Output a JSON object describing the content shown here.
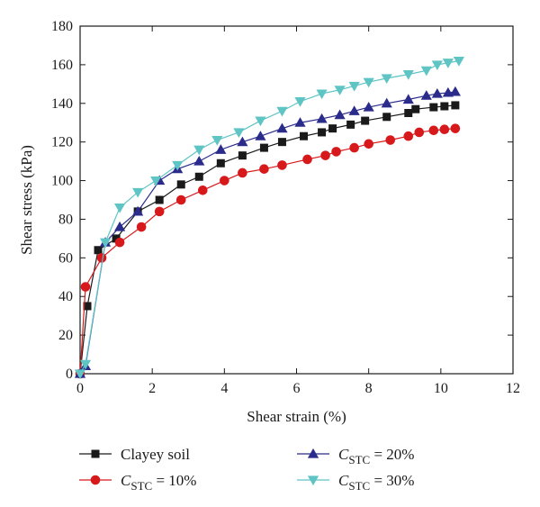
{
  "chart_data": {
    "type": "line",
    "xlabel": "Shear strain (%)",
    "ylabel": "Shear stress (kPa)",
    "xlim": [
      0,
      12
    ],
    "ylim": [
      0,
      180
    ],
    "xticks": [
      0,
      2,
      4,
      6,
      8,
      10,
      12
    ],
    "yticks": [
      0,
      20,
      40,
      60,
      80,
      100,
      120,
      140,
      160,
      180
    ],
    "grid": false,
    "legend_position": "bottom",
    "series": [
      {
        "name": "Clayey soil",
        "marker": "square",
        "color": "#1a1a1a",
        "points": [
          [
            0.0,
            0
          ],
          [
            0.2,
            35
          ],
          [
            0.5,
            64
          ],
          [
            1.0,
            70
          ],
          [
            1.6,
            84
          ],
          [
            2.2,
            90
          ],
          [
            2.8,
            98
          ],
          [
            3.3,
            102
          ],
          [
            3.9,
            109
          ],
          [
            4.5,
            113
          ],
          [
            5.1,
            117
          ],
          [
            5.6,
            120
          ],
          [
            6.2,
            123
          ],
          [
            6.7,
            125
          ],
          [
            7.0,
            127
          ],
          [
            7.5,
            129
          ],
          [
            7.9,
            131
          ],
          [
            8.5,
            133
          ],
          [
            9.1,
            135
          ],
          [
            9.3,
            137
          ],
          [
            9.8,
            138
          ],
          [
            10.1,
            138.5
          ],
          [
            10.4,
            139
          ]
        ]
      },
      {
        "name": "C_STC = 10%",
        "label_parts": {
          "italic": "C",
          "sub": "STC",
          "rest": " = 10%"
        },
        "marker": "circle",
        "color": "#d7191c",
        "points": [
          [
            0.0,
            0
          ],
          [
            0.15,
            45
          ],
          [
            0.6,
            60
          ],
          [
            1.1,
            68
          ],
          [
            1.7,
            76
          ],
          [
            2.2,
            84
          ],
          [
            2.8,
            90
          ],
          [
            3.4,
            95
          ],
          [
            4.0,
            100
          ],
          [
            4.5,
            104
          ],
          [
            5.1,
            106
          ],
          [
            5.6,
            108
          ],
          [
            6.3,
            111
          ],
          [
            6.8,
            113
          ],
          [
            7.1,
            115
          ],
          [
            7.6,
            117
          ],
          [
            8.0,
            119
          ],
          [
            8.6,
            121
          ],
          [
            9.1,
            123
          ],
          [
            9.4,
            125
          ],
          [
            9.8,
            126
          ],
          [
            10.1,
            126.5
          ],
          [
            10.4,
            127
          ]
        ]
      },
      {
        "name": "C_STC = 20%",
        "label_parts": {
          "italic": "C",
          "sub": "STC",
          "rest": " = 20%"
        },
        "marker": "triangle-up",
        "color": "#2b2b8c",
        "points": [
          [
            0.0,
            0
          ],
          [
            0.15,
            4
          ],
          [
            0.7,
            68
          ],
          [
            1.1,
            76
          ],
          [
            1.6,
            84
          ],
          [
            2.2,
            100
          ],
          [
            2.7,
            106
          ],
          [
            3.3,
            110
          ],
          [
            3.9,
            116
          ],
          [
            4.5,
            120
          ],
          [
            5.0,
            123
          ],
          [
            5.6,
            127
          ],
          [
            6.1,
            130
          ],
          [
            6.7,
            132
          ],
          [
            7.2,
            134
          ],
          [
            7.6,
            136
          ],
          [
            8.0,
            138
          ],
          [
            8.5,
            140
          ],
          [
            9.1,
            142
          ],
          [
            9.6,
            144
          ],
          [
            9.9,
            145
          ],
          [
            10.2,
            145.5
          ],
          [
            10.4,
            146
          ]
        ]
      },
      {
        "name": "C_STC = 30%",
        "label_parts": {
          "italic": "C",
          "sub": "STC",
          "rest": " = 30%"
        },
        "marker": "triangle-down",
        "color": "#5ec4c4",
        "points": [
          [
            0.0,
            0
          ],
          [
            0.15,
            5
          ],
          [
            0.7,
            68
          ],
          [
            1.1,
            86
          ],
          [
            1.6,
            94
          ],
          [
            2.1,
            100
          ],
          [
            2.7,
            108
          ],
          [
            3.3,
            116
          ],
          [
            3.8,
            121
          ],
          [
            4.4,
            125
          ],
          [
            5.0,
            131
          ],
          [
            5.6,
            136
          ],
          [
            6.1,
            141
          ],
          [
            6.7,
            145
          ],
          [
            7.2,
            147
          ],
          [
            7.6,
            149
          ],
          [
            8.0,
            151
          ],
          [
            8.5,
            153
          ],
          [
            9.1,
            155
          ],
          [
            9.6,
            157
          ],
          [
            9.9,
            160
          ],
          [
            10.2,
            161
          ],
          [
            10.5,
            162
          ]
        ]
      }
    ]
  }
}
